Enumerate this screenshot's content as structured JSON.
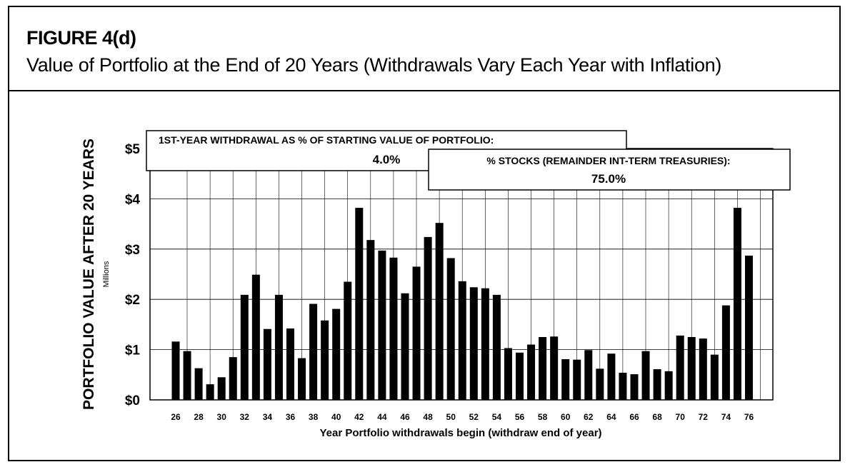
{
  "figure": {
    "title": "FIGURE 4(d)",
    "subtitle": "Value of Portfolio at the End of 20 Years (Withdrawals Vary Each Year with Inflation)"
  },
  "legend_boxes": {
    "withdrawal_label": "1ST-YEAR WITHDRAWAL AS % OF STARTING VALUE OF PORTFOLIO:",
    "withdrawal_value": "4.0%",
    "stocks_label": "% STOCKS (REMAINDER INT-TERM TREASURIES):",
    "stocks_value": "75.0%"
  },
  "chart_data": {
    "type": "bar",
    "title": "Value of Portfolio at the End of 20 Years (Withdrawals Vary Each Year with Inflation)",
    "xlabel": "Year Portfolio withdrawals begin (withdraw end of year)",
    "ylabel": "PORTFOLIO VALUE AFTER 20 YEARS",
    "y_units": "Millions",
    "ylim": [
      0,
      5
    ],
    "y_ticks": [
      0,
      1,
      2,
      3,
      4,
      5
    ],
    "y_tick_labels": [
      "$0",
      "$1",
      "$2",
      "$3",
      "$4",
      "$5"
    ],
    "x_tick_labels": [
      "26",
      "28",
      "30",
      "32",
      "34",
      "36",
      "38",
      "40",
      "42",
      "44",
      "46",
      "48",
      "50",
      "52",
      "54",
      "56",
      "58",
      "60",
      "62",
      "64",
      "66",
      "68",
      "70",
      "72",
      "74",
      "76"
    ],
    "grid": true,
    "categories": [
      1926,
      1927,
      1928,
      1929,
      1930,
      1931,
      1932,
      1933,
      1934,
      1935,
      1936,
      1937,
      1938,
      1939,
      1940,
      1941,
      1942,
      1943,
      1944,
      1945,
      1946,
      1947,
      1948,
      1949,
      1950,
      1951,
      1952,
      1953,
      1954,
      1955,
      1956,
      1957,
      1958,
      1959,
      1960,
      1961,
      1962,
      1963,
      1964,
      1965,
      1966,
      1967,
      1968,
      1969,
      1970,
      1971,
      1972,
      1973,
      1974,
      1975,
      1976
    ],
    "values": [
      1.16,
      0.97,
      0.63,
      0.31,
      0.45,
      0.85,
      2.09,
      2.49,
      1.41,
      2.09,
      1.42,
      0.83,
      1.91,
      1.58,
      1.81,
      2.35,
      3.82,
      3.18,
      2.97,
      2.83,
      2.12,
      2.65,
      3.24,
      3.52,
      2.82,
      2.36,
      2.24,
      2.22,
      2.09,
      1.03,
      0.94,
      1.1,
      1.25,
      1.26,
      0.81,
      0.8,
      0.99,
      0.62,
      0.92,
      0.54,
      0.51,
      0.97,
      0.61,
      0.57,
      1.28,
      1.25,
      1.22,
      0.9,
      1.88,
      3.82,
      2.87
    ]
  }
}
